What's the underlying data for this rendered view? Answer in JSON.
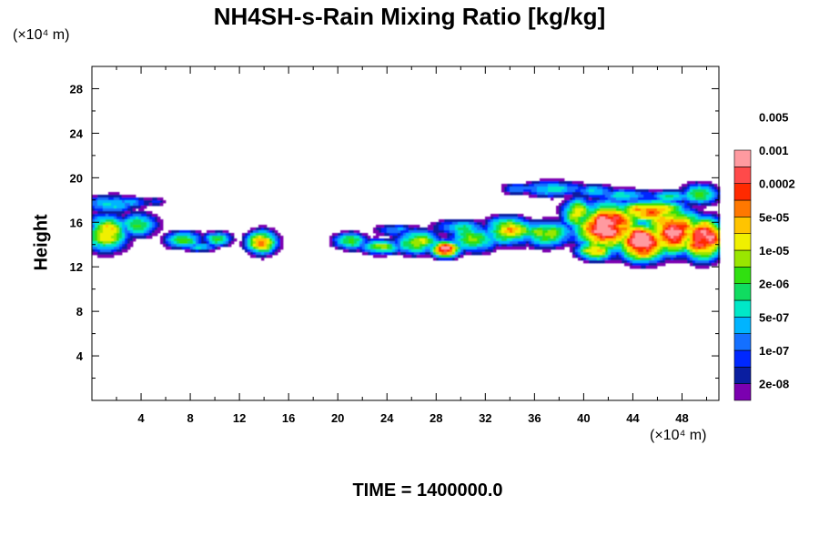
{
  "chart_data": {
    "type": "contour",
    "title": "NH4SH-s-Rain Mixing Ratio [kg/kg]",
    "ylabel": "Height",
    "xlabel": "",
    "x_unit": "(×10⁴ m)",
    "y_unit": "(×10⁴ m)",
    "footer": "TIME = 1400000.0",
    "xlim": [
      0,
      51
    ],
    "ylim": [
      0,
      30
    ],
    "x_ticks": [
      4,
      8,
      12,
      16,
      20,
      24,
      28,
      32,
      36,
      40,
      44,
      48
    ],
    "y_ticks": [
      4,
      8,
      12,
      16,
      20,
      24,
      28
    ],
    "grid": false,
    "colorbar": {
      "levels": [
        "2e-08",
        "1e-07",
        "5e-07",
        "2e-06",
        "1e-05",
        "5e-05",
        "0.0002",
        "0.001",
        "0.005"
      ],
      "colors": [
        "#7b00b0",
        "#0a1ea0",
        "#0028ff",
        "#1470ff",
        "#00b4ff",
        "#00e8c8",
        "#10dc60",
        "#30e010",
        "#9ae600",
        "#f0f000",
        "#ffc400",
        "#ff7800",
        "#ff2a00",
        "#ff4a4a",
        "#ff9aa0"
      ]
    },
    "cloud_regions": [
      {
        "x": [
          0,
          6
        ],
        "y": [
          13.5,
          18.8
        ],
        "peak": "5e-05"
      },
      {
        "x": [
          6,
          11.5
        ],
        "y": [
          13.5,
          15.2
        ],
        "peak": "5e-05"
      },
      {
        "x": [
          13,
          15.5
        ],
        "y": [
          13.2,
          15.3
        ],
        "peak": "0.0002"
      },
      {
        "x": [
          20,
          39
        ],
        "y": [
          12.5,
          17
        ],
        "peak": "0.001"
      },
      {
        "x": [
          33,
          51
        ],
        "y": [
          12.5,
          19.8
        ],
        "peak": "0.005"
      }
    ]
  }
}
